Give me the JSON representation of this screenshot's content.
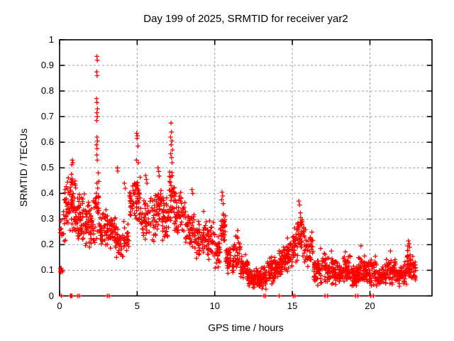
{
  "chart_data": {
    "type": "scatter",
    "title": "Day 199 of 2025, SRMTID for receiver yar2",
    "xlabel": "GPS time / hours",
    "ylabel": "SRMTID / TECUs",
    "x_range": [
      0,
      24
    ],
    "y_range": [
      0,
      1
    ],
    "x_ticks": [
      0,
      5,
      10,
      15,
      20
    ],
    "x_tick_labels": [
      "0",
      "5",
      "10",
      "15",
      "20"
    ],
    "y_ticks": [
      0,
      0.1,
      0.2,
      0.3,
      0.4,
      0.5,
      0.6,
      0.7,
      0.8,
      0.9,
      1
    ],
    "y_tick_labels": [
      "0",
      "0.1",
      "0.2",
      "0.3",
      "0.4",
      "0.5",
      "0.6",
      "0.7",
      "0.8",
      "0.9",
      "1"
    ],
    "grid": {
      "show": true,
      "style": "dashed",
      "color": "#9e9e9e"
    },
    "frame_color": "#000000",
    "background": "#ffffff",
    "legend": "none",
    "series": [
      {
        "name": "SRMTID",
        "marker": "plus",
        "color": "#ff0000",
        "encoding": "band_segments = [hour_start, hour_end, point_count, value_min, value_max] summarizing the dense cloud of ~1900 overlapping + markers read from the plot; peak_points and zero_points are individually visible markers [hour, TECUs]",
        "band_segments": [
          [
            0.02,
            0.18,
            5,
            0.09,
            0.115
          ],
          [
            0.03,
            0.28,
            8,
            0.2,
            0.31
          ],
          [
            0.25,
            0.55,
            26,
            0.2,
            0.47
          ],
          [
            0.55,
            1.05,
            60,
            0.24,
            0.5
          ],
          [
            1.05,
            1.6,
            55,
            0.19,
            0.42
          ],
          [
            1.6,
            2.3,
            62,
            0.17,
            0.38
          ],
          [
            2.3,
            2.55,
            26,
            0.2,
            0.5
          ],
          [
            2.55,
            3.1,
            46,
            0.18,
            0.35
          ],
          [
            3.1,
            3.6,
            40,
            0.17,
            0.33
          ],
          [
            3.6,
            4.5,
            58,
            0.13,
            0.3
          ],
          [
            4.5,
            5.25,
            62,
            0.27,
            0.5
          ],
          [
            5.25,
            6.2,
            62,
            0.2,
            0.4
          ],
          [
            6.2,
            6.6,
            36,
            0.24,
            0.47
          ],
          [
            6.6,
            7.05,
            40,
            0.2,
            0.4
          ],
          [
            7.05,
            7.4,
            36,
            0.28,
            0.5
          ],
          [
            7.4,
            8.1,
            56,
            0.22,
            0.42
          ],
          [
            8.1,
            8.7,
            46,
            0.17,
            0.34
          ],
          [
            8.7,
            9.5,
            56,
            0.14,
            0.31
          ],
          [
            9.5,
            10.0,
            40,
            0.13,
            0.3
          ],
          [
            10.0,
            10.35,
            26,
            0.1,
            0.25
          ],
          [
            10.35,
            10.7,
            30,
            0.17,
            0.36
          ],
          [
            10.7,
            11.35,
            50,
            0.08,
            0.22
          ],
          [
            11.35,
            11.65,
            26,
            0.1,
            0.25
          ],
          [
            11.65,
            12.15,
            46,
            0.05,
            0.17
          ],
          [
            12.15,
            13.35,
            115,
            0.02,
            0.115
          ],
          [
            13.35,
            14.1,
            65,
            0.04,
            0.16
          ],
          [
            14.1,
            14.55,
            40,
            0.06,
            0.2
          ],
          [
            14.55,
            15.05,
            42,
            0.08,
            0.24
          ],
          [
            15.05,
            15.35,
            30,
            0.12,
            0.3
          ],
          [
            15.35,
            15.75,
            36,
            0.15,
            0.345
          ],
          [
            15.75,
            16.35,
            46,
            0.08,
            0.26
          ],
          [
            16.35,
            17.05,
            56,
            0.04,
            0.16
          ],
          [
            17.05,
            17.65,
            50,
            0.04,
            0.17
          ],
          [
            17.65,
            18.25,
            50,
            0.03,
            0.15
          ],
          [
            18.25,
            18.75,
            46,
            0.04,
            0.17
          ],
          [
            18.75,
            19.25,
            46,
            0.03,
            0.13
          ],
          [
            19.25,
            19.75,
            46,
            0.05,
            0.16
          ],
          [
            19.75,
            20.45,
            56,
            0.03,
            0.15
          ],
          [
            20.45,
            21.05,
            50,
            0.03,
            0.13
          ],
          [
            21.05,
            21.65,
            50,
            0.04,
            0.16
          ],
          [
            21.65,
            22.35,
            56,
            0.03,
            0.14
          ],
          [
            22.35,
            22.78,
            40,
            0.05,
            0.19
          ],
          [
            22.78,
            22.95,
            15,
            0.04,
            0.15
          ]
        ],
        "peak_points": [
          [
            0.05,
            0.108
          ],
          [
            0.07,
            0.1
          ],
          [
            0.09,
            0.095
          ],
          [
            0.06,
            0.093
          ],
          [
            0.82,
            0.53
          ],
          [
            0.86,
            0.52
          ],
          [
            0.79,
            0.512
          ],
          [
            2.4,
            0.935
          ],
          [
            2.43,
            0.92
          ],
          [
            2.39,
            0.875
          ],
          [
            2.42,
            0.86
          ],
          [
            2.38,
            0.77
          ],
          [
            2.41,
            0.755
          ],
          [
            2.44,
            0.73
          ],
          [
            2.4,
            0.715
          ],
          [
            2.43,
            0.7
          ],
          [
            2.39,
            0.685
          ],
          [
            2.41,
            0.62
          ],
          [
            2.44,
            0.605
          ],
          [
            2.38,
            0.59
          ],
          [
            2.42,
            0.575
          ],
          [
            2.4,
            0.55
          ],
          [
            2.43,
            0.53
          ],
          [
            3.72,
            0.5
          ],
          [
            3.75,
            0.487
          ],
          [
            4.18,
            0.44
          ],
          [
            4.23,
            0.42
          ],
          [
            4.97,
            0.635
          ],
          [
            5.01,
            0.625
          ],
          [
            4.99,
            0.615
          ],
          [
            5.05,
            0.585
          ],
          [
            4.95,
            0.53
          ],
          [
            5.08,
            0.52
          ],
          [
            5.55,
            0.47
          ],
          [
            5.59,
            0.455
          ],
          [
            5.63,
            0.44
          ],
          [
            6.34,
            0.5
          ],
          [
            6.39,
            0.486
          ],
          [
            6.42,
            0.468
          ],
          [
            7.18,
            0.675
          ],
          [
            7.21,
            0.64
          ],
          [
            7.15,
            0.62
          ],
          [
            7.24,
            0.605
          ],
          [
            7.19,
            0.59
          ],
          [
            7.27,
            0.57
          ],
          [
            7.16,
            0.555
          ],
          [
            7.22,
            0.54
          ],
          [
            7.25,
            0.52
          ],
          [
            8.53,
            0.415
          ],
          [
            8.58,
            0.4
          ],
          [
            9.28,
            0.33
          ],
          [
            10.47,
            0.405
          ],
          [
            10.51,
            0.39
          ],
          [
            10.44,
            0.375
          ],
          [
            10.54,
            0.36
          ],
          [
            11.48,
            0.255
          ],
          [
            15.42,
            0.37
          ],
          [
            15.47,
            0.355
          ],
          [
            16.82,
            0.185
          ],
          [
            17.52,
            0.175
          ],
          [
            18.42,
            0.172
          ],
          [
            19.42,
            0.195
          ],
          [
            20.35,
            0.155
          ],
          [
            21.32,
            0.175
          ],
          [
            22.48,
            0.215
          ],
          [
            22.53,
            0.204
          ],
          [
            22.44,
            0.195
          ],
          [
            22.56,
            0.19
          ]
        ],
        "zero_points": [
          0.12,
          0.7,
          0.72,
          0.74,
          0.76,
          0.78,
          0.8,
          1.17,
          1.28,
          3.08,
          3.2,
          13.17,
          13.27,
          14.15,
          15.05,
          15.17,
          17.1,
          17.27,
          19.07,
          19.22,
          20.05,
          20.22
        ]
      }
    ]
  }
}
